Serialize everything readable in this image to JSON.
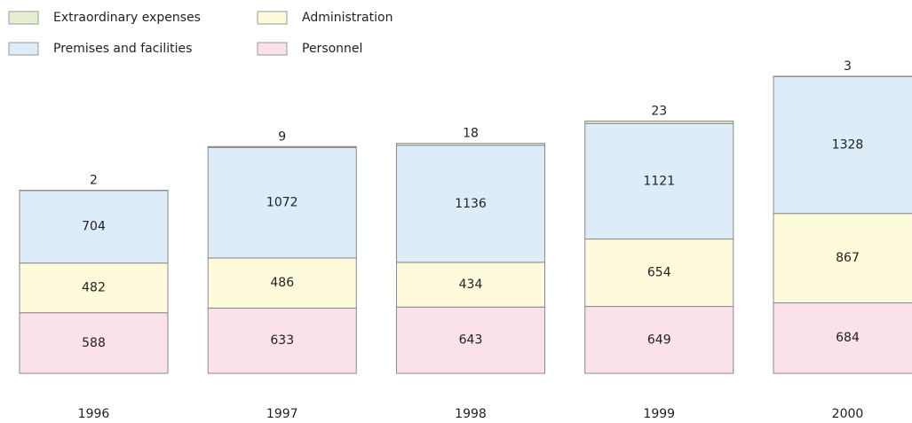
{
  "chart_data": {
    "type": "stacked-bar",
    "categories": [
      "1996",
      "1997",
      "1998",
      "1999",
      "2000"
    ],
    "series": [
      {
        "name": "Personnel",
        "color": "#fbe1ea",
        "values": [
          588,
          633,
          643,
          649,
          684
        ]
      },
      {
        "name": "Administration",
        "color": "#fdfbdc",
        "values": [
          482,
          486,
          434,
          654,
          867
        ]
      },
      {
        "name": "Premises and facilities",
        "color": "#dcecf9",
        "values": [
          704,
          1072,
          1136,
          1121,
          1328
        ]
      },
      {
        "name": "Extraordinary expenses",
        "color": "#e5efd2",
        "values": [
          2,
          9,
          18,
          23,
          3
        ]
      }
    ]
  }
}
